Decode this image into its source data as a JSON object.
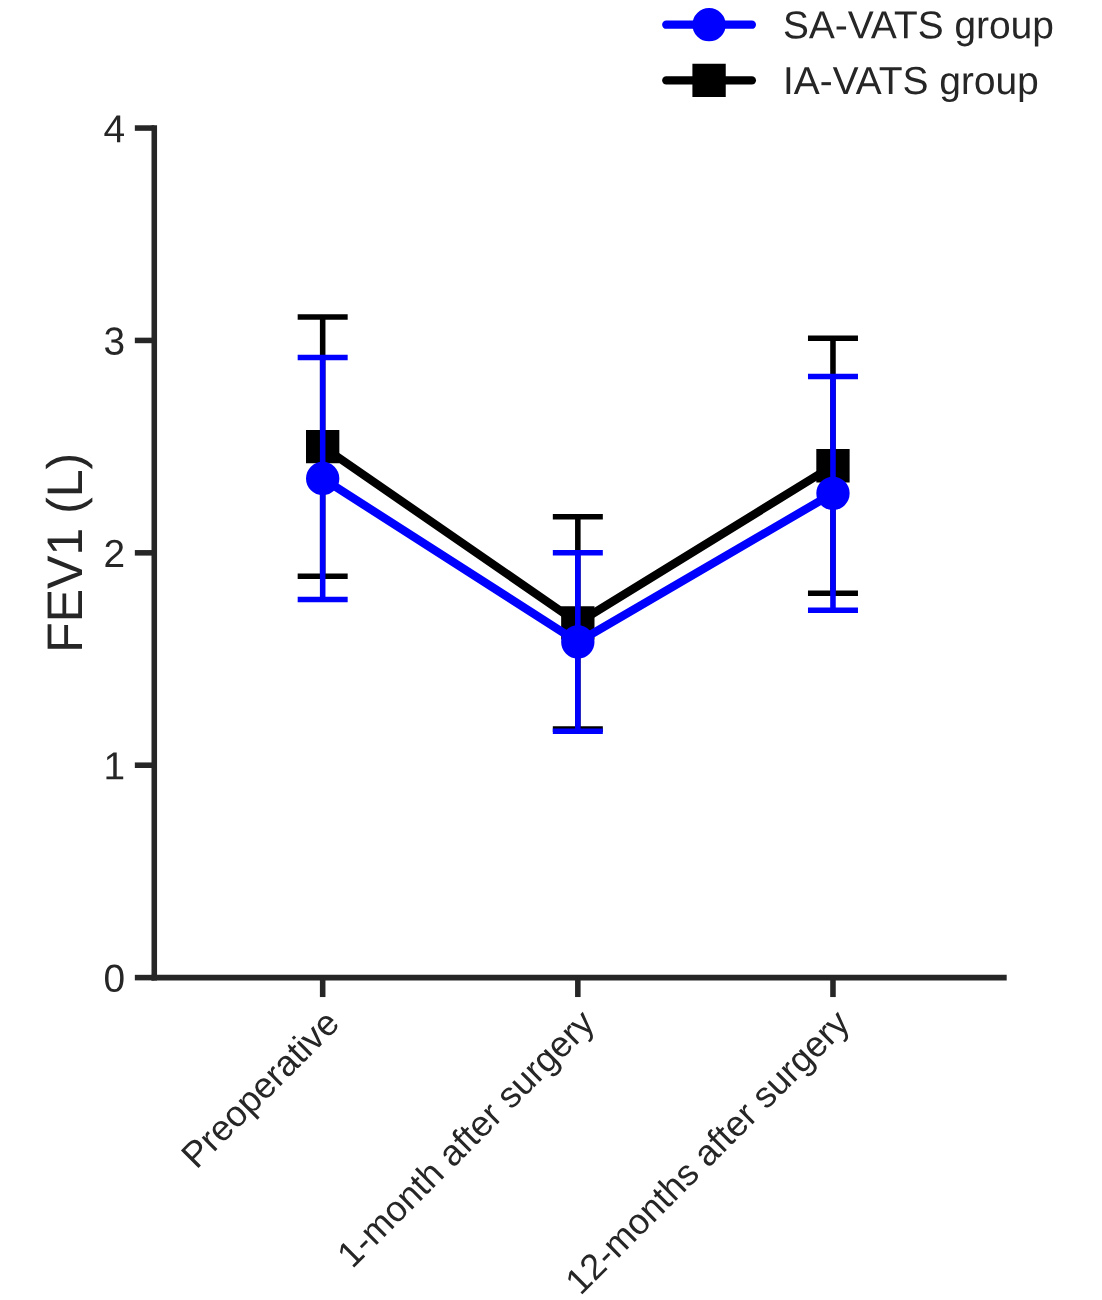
{
  "chart_data": {
    "type": "line",
    "ylabel": "FEV1 (L)",
    "categories": [
      "Preoperative",
      "1-month after surgery",
      "12-months after surgery"
    ],
    "series": [
      {
        "name": "SA-VATS group",
        "color": "#0000ff",
        "marker": "circle",
        "values": [
          2.35,
          1.58,
          2.28
        ],
        "errors": [
          0.57,
          0.42,
          0.55
        ]
      },
      {
        "name": "IA-VATS group",
        "color": "#000000",
        "marker": "square",
        "values": [
          2.5,
          1.67,
          2.41
        ],
        "errors": [
          0.61,
          0.5,
          0.6
        ]
      }
    ],
    "ylim": [
      0,
      4
    ],
    "yticks": [
      0,
      1,
      2,
      3,
      4
    ],
    "grid": false,
    "legend": "top right"
  }
}
